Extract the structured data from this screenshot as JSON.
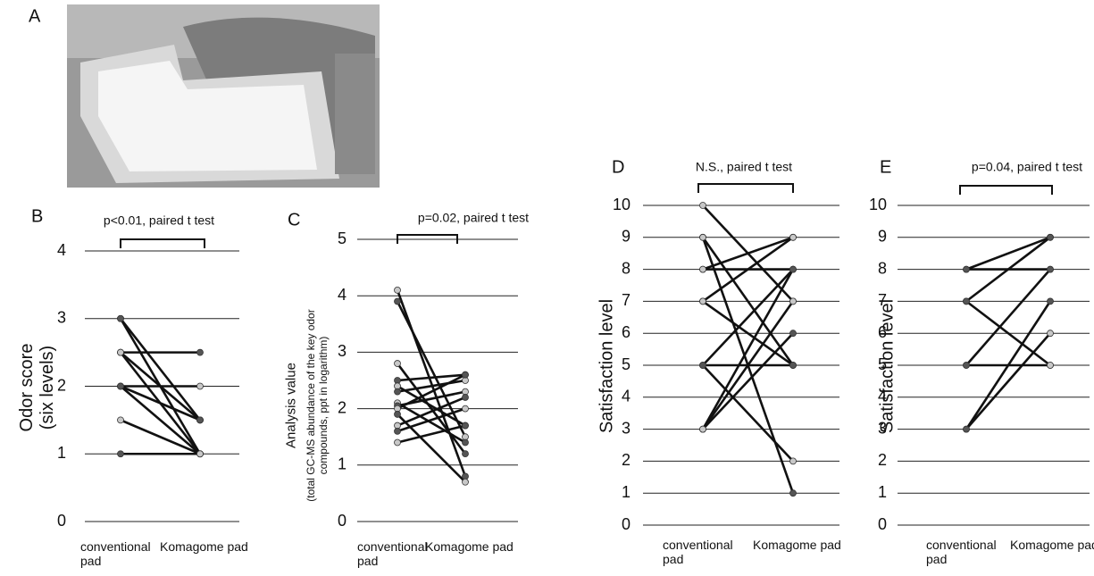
{
  "panel_a_label": "A",
  "chart_data": [
    {
      "type": "line",
      "panel": "B",
      "annotation": "p<0.01, paired t test",
      "ylabel": "Odor score (six levels)",
      "categories": [
        "conventional pad",
        "Komagome pad"
      ],
      "ylim": [
        0,
        4
      ],
      "yticks": [
        0,
        1,
        2,
        3,
        4
      ],
      "grid": true,
      "series": [
        {
          "values": [
            3,
            1.5
          ]
        },
        {
          "values": [
            3,
            1
          ]
        },
        {
          "values": [
            2.5,
            2.5
          ]
        },
        {
          "values": [
            2.5,
            1.5
          ]
        },
        {
          "values": [
            2.5,
            1
          ]
        },
        {
          "values": [
            2,
            2
          ]
        },
        {
          "values": [
            2,
            1.5
          ]
        },
        {
          "values": [
            2,
            1
          ]
        },
        {
          "values": [
            1.5,
            1
          ]
        },
        {
          "values": [
            1,
            1
          ]
        }
      ]
    },
    {
      "type": "line",
      "panel": "C",
      "annotation": "p=0.02,  paired t test",
      "ylabel": "Analysis value",
      "ysublabel": "(total GC-MS abundance of the key odor compounds, ppt in logarithm)",
      "categories": [
        "conventional pad",
        "Komagome pad"
      ],
      "ylim": [
        0,
        5
      ],
      "yticks": [
        0,
        1,
        2,
        3,
        4,
        5
      ],
      "grid": true,
      "series": [
        {
          "values": [
            4.1,
            0.8
          ]
        },
        {
          "values": [
            3.9,
            1.5
          ]
        },
        {
          "values": [
            2.8,
            1.2
          ]
        },
        {
          "values": [
            2.5,
            2.6
          ]
        },
        {
          "values": [
            2.4,
            1.7
          ]
        },
        {
          "values": [
            2.3,
            2.5
          ]
        },
        {
          "values": [
            2.1,
            1.4
          ]
        },
        {
          "values": [
            2.05,
            2.3
          ]
        },
        {
          "values": [
            2.0,
            2.6
          ]
        },
        {
          "values": [
            1.9,
            0.7
          ]
        },
        {
          "values": [
            1.7,
            2.2
          ]
        },
        {
          "values": [
            1.6,
            2.0
          ]
        },
        {
          "values": [
            1.4,
            1.7
          ]
        }
      ]
    },
    {
      "type": "line",
      "panel": "D",
      "annotation": "N.S., paired t test",
      "ylabel": "Satisfaction level",
      "categories": [
        "conventional pad",
        "Komagome pad"
      ],
      "ylim": [
        0,
        10
      ],
      "yticks": [
        0,
        1,
        2,
        3,
        4,
        5,
        6,
        7,
        8,
        9,
        10
      ],
      "grid": true,
      "series": [
        {
          "values": [
            10,
            7
          ]
        },
        {
          "values": [
            9,
            5
          ]
        },
        {
          "values": [
            9,
            1
          ]
        },
        {
          "values": [
            8,
            9
          ]
        },
        {
          "values": [
            8,
            8
          ]
        },
        {
          "values": [
            7,
            9
          ]
        },
        {
          "values": [
            7,
            5
          ]
        },
        {
          "values": [
            5,
            8
          ]
        },
        {
          "values": [
            5,
            5
          ]
        },
        {
          "values": [
            5,
            2
          ]
        },
        {
          "values": [
            3,
            8
          ]
        },
        {
          "values": [
            3,
            7
          ]
        },
        {
          "values": [
            3,
            6
          ]
        }
      ]
    },
    {
      "type": "line",
      "panel": "E",
      "annotation": "p=0.04, paired t test",
      "ylabel": "Satisfaction level",
      "categories": [
        "conventional pad",
        "Komagome pad"
      ],
      "ylim": [
        0,
        10
      ],
      "yticks": [
        0,
        1,
        2,
        3,
        4,
        5,
        6,
        7,
        8,
        9,
        10
      ],
      "grid": true,
      "series": [
        {
          "values": [
            8,
            9
          ]
        },
        {
          "values": [
            8,
            8
          ]
        },
        {
          "values": [
            7,
            9
          ]
        },
        {
          "values": [
            7,
            5
          ]
        },
        {
          "values": [
            5,
            8
          ]
        },
        {
          "values": [
            5,
            5
          ]
        },
        {
          "values": [
            3,
            7
          ]
        },
        {
          "values": [
            3,
            6
          ]
        }
      ]
    }
  ]
}
